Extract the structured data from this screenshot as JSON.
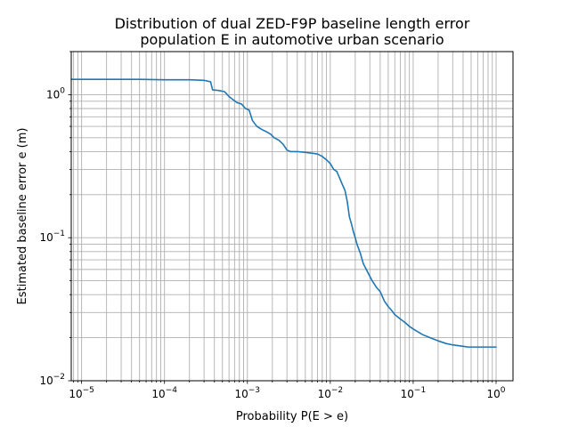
{
  "chart_data": {
    "type": "line",
    "title_line1": "Distribution of dual ZED-F9P baseline length error",
    "title_line2": "population E in automotive urban scenario",
    "xlabel": "Probability P(E > e)",
    "ylabel": "Estimated baseline error e (m)",
    "x_scale": "log",
    "y_scale": "log",
    "xlim": [
      7.5e-06,
      1.6
    ],
    "ylim": [
      0.01,
      2.0
    ],
    "grid": "major-and-minor",
    "x_ticks": [
      {
        "value": 1e-05,
        "base": "10",
        "exp": "−5"
      },
      {
        "value": 0.0001,
        "base": "10",
        "exp": "−4"
      },
      {
        "value": 0.001,
        "base": "10",
        "exp": "−3"
      },
      {
        "value": 0.01,
        "base": "10",
        "exp": "−2"
      },
      {
        "value": 0.1,
        "base": "10",
        "exp": "−1"
      },
      {
        "value": 1,
        "base": "10",
        "exp": "0"
      }
    ],
    "y_ticks": [
      {
        "value": 0.01,
        "base": "10",
        "exp": "−2"
      },
      {
        "value": 0.1,
        "base": "10",
        "exp": "−1"
      },
      {
        "value": 1,
        "base": "10",
        "exp": "0"
      }
    ],
    "series": [
      {
        "color": "#1f77b4",
        "x": [
          7.5e-06,
          2e-05,
          5e-05,
          0.0001,
          0.0002,
          0.0003,
          0.00036,
          0.00038,
          0.00045,
          0.00053,
          0.0006,
          0.00066,
          0.00075,
          0.00085,
          0.00095,
          0.00105,
          0.00115,
          0.0013,
          0.0015,
          0.0017,
          0.0019,
          0.0021,
          0.0024,
          0.0027,
          0.003,
          0.0033,
          0.004,
          0.005,
          0.006,
          0.007,
          0.008,
          0.009,
          0.01,
          0.011,
          0.012,
          0.013,
          0.014,
          0.015,
          0.016,
          0.017,
          0.018,
          0.019,
          0.02,
          0.021,
          0.023,
          0.025,
          0.028,
          0.032,
          0.036,
          0.04,
          0.045,
          0.05,
          0.055,
          0.06,
          0.07,
          0.08,
          0.09,
          0.1,
          0.13,
          0.16,
          0.2,
          0.25,
          0.3,
          0.4,
          0.46,
          0.6,
          0.8,
          1.0
        ],
        "y": [
          1.28,
          1.28,
          1.28,
          1.27,
          1.27,
          1.26,
          1.23,
          1.08,
          1.07,
          1.05,
          0.97,
          0.93,
          0.88,
          0.86,
          0.8,
          0.78,
          0.66,
          0.6,
          0.57,
          0.55,
          0.53,
          0.5,
          0.48,
          0.45,
          0.41,
          0.4,
          0.4,
          0.395,
          0.39,
          0.385,
          0.37,
          0.35,
          0.33,
          0.3,
          0.29,
          0.26,
          0.235,
          0.215,
          0.18,
          0.14,
          0.125,
          0.11,
          0.1,
          0.09,
          0.078,
          0.066,
          0.058,
          0.05,
          0.045,
          0.042,
          0.036,
          0.033,
          0.031,
          0.029,
          0.027,
          0.0255,
          0.024,
          0.023,
          0.021,
          0.02,
          0.019,
          0.0182,
          0.0178,
          0.0174,
          0.0172,
          0.0172,
          0.0172,
          0.0172
        ]
      }
    ]
  }
}
